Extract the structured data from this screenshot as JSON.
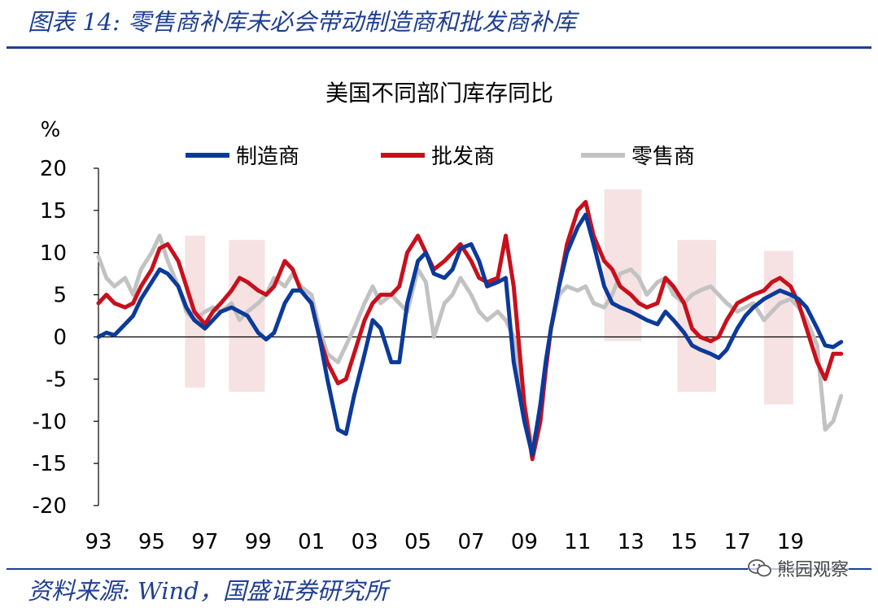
{
  "figure": {
    "title": "图表 14: 零售商补库未必会带动制造商和批发商补库",
    "source": "资料来源: Wind，国盛证券研究所",
    "watermark": "熊园观察",
    "wechat_icon": "wechat-icon"
  },
  "colors": {
    "manufacturer": "#0b3a9a",
    "wholesaler": "#c8101c",
    "retailer": "#c2c2c2",
    "shade": "#f6e2e2",
    "accent": "#1f3f92"
  },
  "chart_data": {
    "type": "line",
    "title": "美国不同部门库存同比",
    "ylabel": "%",
    "ylim": [
      -20,
      20
    ],
    "yticks": [
      20,
      15,
      10,
      5,
      0,
      -5,
      -10,
      -15,
      -20
    ],
    "xlim": [
      1993,
      2021
    ],
    "xticks": [
      "93",
      "95",
      "97",
      "99",
      "01",
      "03",
      "05",
      "07",
      "09",
      "11",
      "13",
      "15",
      "17",
      "19"
    ],
    "xtick_years": [
      1993,
      1995,
      1997,
      1999,
      2001,
      2003,
      2005,
      2007,
      2009,
      2011,
      2013,
      2015,
      2017,
      2019
    ],
    "legend_position": "top",
    "shaded_periods": [
      {
        "x0": 1996.25,
        "x1": 1997.0,
        "y0": -6,
        "y1": 12
      },
      {
        "x0": 1997.9,
        "x1": 1999.25,
        "y0": -6.5,
        "y1": 11.5
      },
      {
        "x0": 2012.0,
        "x1": 2013.4,
        "y0": -0.5,
        "y1": 17.5
      },
      {
        "x0": 2014.75,
        "x1": 2016.2,
        "y0": -6.5,
        "y1": 11.5
      },
      {
        "x0": 2018.0,
        "x1": 2019.1,
        "y0": -8,
        "y1": 10.2
      }
    ],
    "series": [
      {
        "name": "制造商",
        "key": "manufacturer",
        "x": [
          1993.0,
          1993.3,
          1993.6,
          1994.0,
          1994.3,
          1994.6,
          1995.0,
          1995.3,
          1995.6,
          1996.0,
          1996.3,
          1996.6,
          1997.0,
          1997.3,
          1997.6,
          1998.0,
          1998.3,
          1998.6,
          1999.0,
          1999.3,
          1999.6,
          2000.0,
          2000.3,
          2000.6,
          2001.0,
          2001.3,
          2001.6,
          2002.0,
          2002.3,
          2002.6,
          2003.0,
          2003.3,
          2003.6,
          2004.0,
          2004.3,
          2004.6,
          2005.0,
          2005.3,
          2005.6,
          2006.0,
          2006.3,
          2006.6,
          2007.0,
          2007.3,
          2007.6,
          2008.0,
          2008.3,
          2008.6,
          2009.0,
          2009.3,
          2009.6,
          2009.8,
          2010.0,
          2010.3,
          2010.6,
          2011.0,
          2011.3,
          2011.6,
          2012.0,
          2012.3,
          2012.6,
          2013.0,
          2013.3,
          2013.6,
          2014.0,
          2014.3,
          2014.6,
          2015.0,
          2015.3,
          2015.6,
          2016.0,
          2016.3,
          2016.6,
          2017.0,
          2017.3,
          2017.6,
          2018.0,
          2018.3,
          2018.6,
          2019.0,
          2019.3,
          2019.6,
          2020.0,
          2020.3,
          2020.6,
          2020.9
        ],
        "values": [
          0,
          0.5,
          0.2,
          1.5,
          2.5,
          4.5,
          6.5,
          8,
          7.5,
          6,
          3.5,
          2,
          1,
          2,
          3,
          3.5,
          3,
          2.5,
          0.5,
          -0.3,
          0.5,
          4,
          5.5,
          5.5,
          4,
          0,
          -5,
          -11,
          -11.5,
          -7,
          -2,
          2,
          1,
          -3,
          -3,
          4,
          9,
          10,
          7.5,
          7,
          8,
          10.5,
          11,
          9,
          6,
          6.5,
          7,
          -3,
          -10,
          -14,
          -8,
          -3,
          1,
          6,
          10,
          13,
          14.5,
          11,
          6,
          4,
          3.5,
          3,
          2.5,
          2,
          1.5,
          3,
          2,
          0.5,
          -1,
          -1.5,
          -2,
          -2.5,
          -1.5,
          1,
          2.5,
          3.5,
          4.5,
          5,
          5.5,
          5,
          4.5,
          3.5,
          1,
          -1,
          -1.2,
          -0.6
        ]
      },
      {
        "name": "批发商",
        "key": "wholesaler",
        "x": [
          1993.0,
          1993.3,
          1993.6,
          1994.0,
          1994.3,
          1994.6,
          1995.0,
          1995.3,
          1995.6,
          1996.0,
          1996.3,
          1996.6,
          1997.0,
          1997.3,
          1997.6,
          1998.0,
          1998.3,
          1998.6,
          1999.0,
          1999.3,
          1999.6,
          2000.0,
          2000.3,
          2000.6,
          2001.0,
          2001.3,
          2001.6,
          2002.0,
          2002.3,
          2002.6,
          2003.0,
          2003.3,
          2003.6,
          2004.0,
          2004.3,
          2004.6,
          2005.0,
          2005.3,
          2005.6,
          2006.0,
          2006.3,
          2006.6,
          2007.0,
          2007.3,
          2007.6,
          2008.0,
          2008.3,
          2008.6,
          2009.0,
          2009.3,
          2009.6,
          2009.8,
          2010.0,
          2010.3,
          2010.6,
          2011.0,
          2011.3,
          2011.6,
          2012.0,
          2012.3,
          2012.6,
          2013.0,
          2013.3,
          2013.6,
          2014.0,
          2014.3,
          2014.6,
          2015.0,
          2015.3,
          2015.6,
          2016.0,
          2016.3,
          2016.6,
          2017.0,
          2017.3,
          2017.6,
          2018.0,
          2018.3,
          2018.6,
          2019.0,
          2019.3,
          2019.6,
          2020.0,
          2020.3,
          2020.6,
          2020.9
        ],
        "values": [
          4,
          5,
          4,
          3.5,
          4,
          6,
          8,
          10.5,
          11,
          9,
          6,
          3,
          1.5,
          3,
          4,
          5.5,
          7,
          6.5,
          5.5,
          5,
          6,
          9,
          8,
          5.5,
          4,
          0,
          -3,
          -5.5,
          -5,
          -2,
          2,
          4,
          5,
          5,
          6,
          10,
          12,
          10,
          8,
          9,
          10,
          11,
          9,
          7,
          6.5,
          7,
          12,
          6,
          -8,
          -14.5,
          -10,
          -4,
          1,
          6,
          11,
          15,
          16,
          12,
          9,
          8,
          6,
          5,
          4,
          3.5,
          4,
          7,
          6,
          4,
          1,
          0,
          -0.5,
          0,
          2,
          4,
          4.5,
          5,
          5.5,
          6.5,
          7,
          6,
          4,
          1,
          -3,
          -5,
          -2,
          -2
        ]
      },
      {
        "name": "零售商",
        "key": "retailer",
        "x": [
          1993.0,
          1993.3,
          1993.6,
          1994.0,
          1994.3,
          1994.6,
          1995.0,
          1995.3,
          1995.6,
          1996.0,
          1996.3,
          1996.6,
          1997.0,
          1997.3,
          1997.6,
          1998.0,
          1998.3,
          1998.6,
          1999.0,
          1999.3,
          1999.6,
          2000.0,
          2000.3,
          2000.6,
          2001.0,
          2001.3,
          2001.6,
          2002.0,
          2002.3,
          2002.6,
          2003.0,
          2003.3,
          2003.6,
          2004.0,
          2004.3,
          2004.6,
          2005.0,
          2005.3,
          2005.6,
          2006.0,
          2006.3,
          2006.6,
          2007.0,
          2007.3,
          2007.6,
          2008.0,
          2008.3,
          2008.6,
          2009.0,
          2009.3,
          2009.6,
          2009.8,
          2010.0,
          2010.3,
          2010.6,
          2011.0,
          2011.3,
          2011.6,
          2012.0,
          2012.3,
          2012.6,
          2013.0,
          2013.3,
          2013.6,
          2014.0,
          2014.3,
          2014.6,
          2015.0,
          2015.3,
          2015.6,
          2016.0,
          2016.3,
          2016.6,
          2017.0,
          2017.3,
          2017.6,
          2018.0,
          2018.3,
          2018.6,
          2019.0,
          2019.3,
          2019.6,
          2020.0,
          2020.3,
          2020.6,
          2020.9
        ],
        "values": [
          9.5,
          7,
          6,
          7,
          5,
          8,
          10,
          12,
          9,
          6,
          3,
          2,
          3,
          3.5,
          3,
          4,
          2,
          3,
          4,
          5,
          7,
          6,
          7.5,
          6,
          5,
          1,
          -2,
          -3,
          -1,
          1,
          4,
          6,
          4,
          5,
          4,
          3,
          8,
          6.5,
          0,
          4,
          5,
          7,
          5,
          3,
          2,
          3,
          2,
          0,
          -8,
          -13,
          -9,
          -3,
          1,
          5,
          6,
          5.5,
          6,
          4,
          3.5,
          5,
          7.5,
          8,
          7,
          5,
          6.5,
          7,
          5,
          4,
          5,
          5.5,
          6,
          5,
          4,
          3,
          3.5,
          4,
          2,
          3,
          4,
          4.5,
          3.5,
          2,
          -1,
          -11,
          -10,
          -7
        ]
      }
    ]
  }
}
